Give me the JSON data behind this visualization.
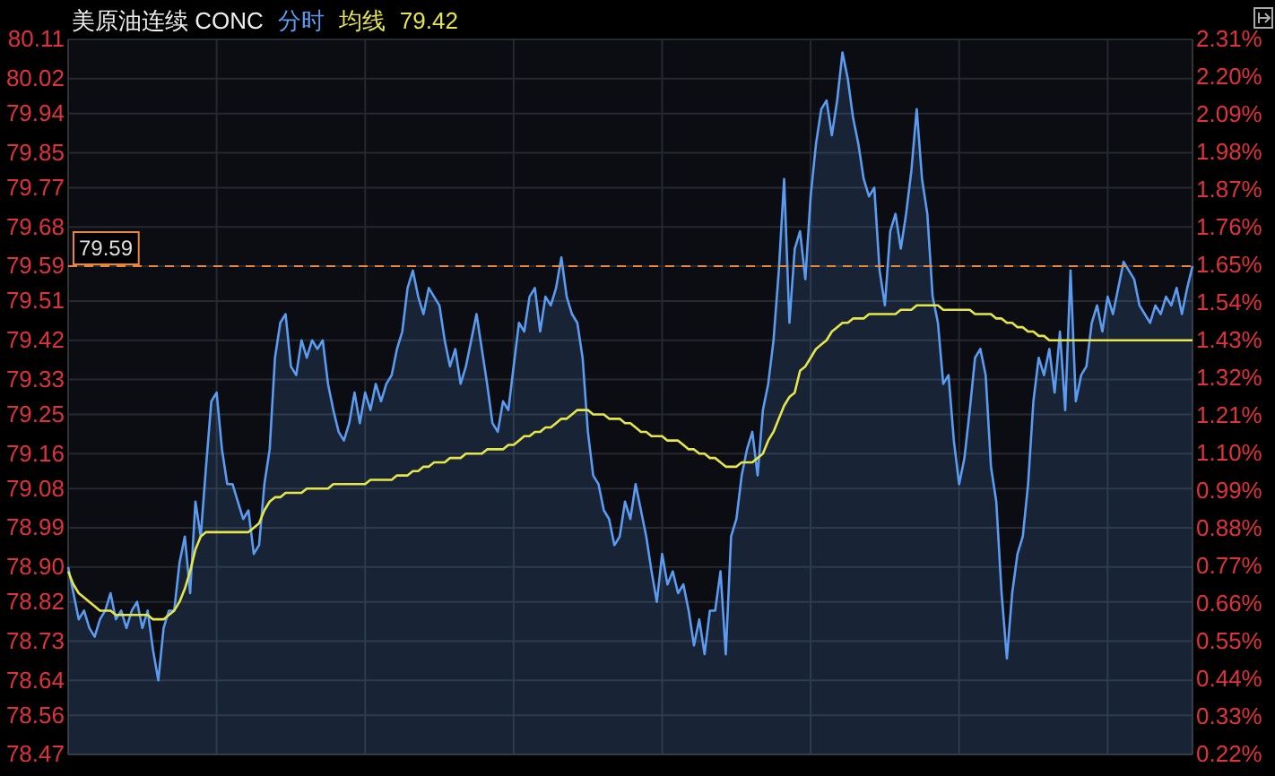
{
  "chart_data": {
    "type": "area",
    "title": "美原油连续 CONC",
    "grid": true,
    "tick_labels": "y",
    "categories": [
      null,
      null,
      null,
      null,
      null,
      null,
      null,
      null,
      null,
      null,
      null,
      null,
      null,
      null,
      null,
      null,
      null,
      null,
      null,
      null,
      null,
      null,
      null,
      null,
      null,
      null,
      null,
      null,
      null,
      null,
      null,
      null,
      null,
      null,
      null,
      null,
      null,
      null,
      null,
      null,
      null,
      null,
      null,
      null,
      null,
      null,
      null,
      null,
      null,
      null,
      null,
      null,
      null,
      null,
      null,
      null,
      null,
      null,
      null,
      null,
      null,
      null,
      null,
      null,
      null,
      null,
      null,
      null,
      null,
      null,
      null,
      null,
      null,
      null,
      null,
      null,
      null,
      null,
      null,
      null,
      null,
      null,
      null,
      null,
      null,
      null,
      null,
      null,
      null,
      null,
      null,
      null,
      null,
      null,
      null,
      null,
      null,
      null,
      null,
      null,
      null,
      null,
      null,
      null,
      null,
      null,
      null,
      null,
      null,
      null,
      null,
      null,
      null,
      null,
      null,
      null,
      null,
      null,
      null,
      null,
      null,
      null,
      null,
      null,
      null,
      null,
      null,
      null,
      null,
      null,
      null,
      null,
      null,
      null,
      null,
      null,
      null,
      null,
      null,
      null,
      null,
      null,
      null,
      null,
      null,
      null,
      null,
      null,
      null,
      null,
      null,
      null,
      null,
      null,
      null,
      null,
      null,
      null,
      null,
      null,
      null,
      null,
      null,
      null,
      null,
      null,
      null,
      null,
      null,
      null,
      null,
      null,
      null,
      null,
      null,
      null,
      null,
      null,
      null,
      null,
      null,
      null,
      null,
      null,
      null,
      null,
      null,
      null,
      null,
      null,
      null,
      null,
      null,
      null,
      null,
      null,
      null,
      null,
      null,
      null,
      null,
      null,
      null,
      null,
      null,
      null,
      null,
      null,
      null,
      null,
      null,
      null,
      null
    ],
    "ylim": [
      78.47,
      80.11
    ],
    "yticks": [
      78.47,
      78.56,
      78.64,
      78.73,
      78.82,
      {
        "value": 78.9,
        "label": "78.90"
      },
      78.99,
      79.08,
      79.16,
      79.25,
      79.33,
      79.42,
      79.51,
      79.59,
      79.68,
      79.77,
      79.85,
      79.94,
      80.02,
      80.11
    ],
    "y2lim": [
      0.22,
      2.31
    ],
    "y2ticks": [
      {
        "value": 0.22,
        "label": "0.22%"
      },
      {
        "value": 0.33,
        "label": "0.33%"
      },
      {
        "value": 0.44,
        "label": "0.44%"
      },
      {
        "value": 0.55,
        "label": "0.55%"
      },
      {
        "value": 0.66,
        "label": "0.66%"
      },
      {
        "value": 0.77,
        "label": "0.77%"
      },
      {
        "value": 0.88,
        "label": "0.88%"
      },
      {
        "value": 0.99,
        "label": "0.99%"
      },
      {
        "value": 1.1,
        "label": "1.10%"
      },
      {
        "value": 1.21,
        "label": "1.21%"
      },
      {
        "value": 1.32,
        "label": "1.32%"
      },
      {
        "value": 1.43,
        "label": "1.43%"
      },
      {
        "value": 1.54,
        "label": "1.54%"
      },
      {
        "value": 1.65,
        "label": "1.65%"
      },
      {
        "value": 1.76,
        "label": "1.76%"
      },
      {
        "value": 1.87,
        "label": "1.87%"
      },
      {
        "value": 1.98,
        "label": "1.98%"
      },
      {
        "value": 2.09,
        "label": "2.09%"
      },
      {
        "value": 2.2,
        "label": "2.20%"
      },
      {
        "value": 2.31,
        "label": "2.31%"
      }
    ],
    "ref_lines": [
      {
        "axis": "y",
        "value": 79.59,
        "label": "79.59",
        "color": "#e8873a",
        "line_style": "dashed"
      }
    ],
    "annotations": [
      "79.42"
    ],
    "series": [
      {
        "name": "分时",
        "color": "#5b9bf0",
        "values": [
          78.9,
          78.84,
          78.78,
          78.8,
          78.76,
          78.74,
          78.78,
          78.8,
          78.84,
          78.78,
          78.8,
          78.76,
          78.8,
          78.82,
          78.76,
          78.8,
          78.71,
          78.64,
          78.76,
          78.8,
          78.8,
          78.91,
          78.97,
          78.84,
          79.05,
          78.97,
          79.13,
          79.28,
          79.3,
          79.17,
          79.09,
          79.09,
          79.05,
          79.01,
          79.03,
          78.93,
          78.95,
          79.09,
          79.17,
          79.38,
          79.46,
          79.48,
          79.36,
          79.34,
          79.42,
          79.38,
          79.42,
          79.4,
          79.42,
          79.32,
          79.26,
          79.21,
          79.19,
          79.23,
          79.3,
          79.23,
          79.3,
          79.26,
          79.32,
          79.28,
          79.32,
          79.34,
          79.4,
          79.44,
          79.54,
          79.58,
          79.52,
          79.48,
          79.54,
          79.52,
          79.5,
          79.42,
          79.36,
          79.4,
          79.32,
          79.36,
          79.42,
          79.48,
          79.4,
          79.32,
          79.23,
          79.21,
          79.28,
          79.26,
          79.36,
          79.46,
          79.44,
          79.52,
          79.54,
          79.44,
          79.52,
          79.5,
          79.54,
          79.61,
          79.52,
          79.48,
          79.46,
          79.38,
          79.21,
          79.11,
          79.09,
          79.03,
          79.01,
          78.95,
          78.97,
          79.05,
          79.01,
          79.09,
          79.03,
          78.97,
          78.89,
          78.82,
          78.93,
          78.86,
          78.89,
          78.84,
          78.86,
          78.8,
          78.72,
          78.78,
          78.7,
          78.8,
          78.8,
          78.89,
          78.7,
          78.97,
          79.01,
          79.11,
          79.17,
          79.21,
          79.11,
          79.26,
          79.32,
          79.42,
          79.58,
          79.79,
          79.46,
          79.63,
          79.67,
          79.56,
          79.75,
          79.87,
          79.95,
          79.97,
          79.89,
          79.97,
          80.08,
          80.02,
          79.93,
          79.87,
          79.79,
          79.75,
          79.77,
          79.58,
          79.5,
          79.67,
          79.71,
          79.63,
          79.71,
          79.81,
          79.95,
          79.79,
          79.71,
          79.52,
          79.46,
          79.32,
          79.34,
          79.19,
          79.09,
          79.15,
          79.26,
          79.38,
          79.4,
          79.34,
          79.13,
          79.05,
          78.84,
          78.69,
          78.84,
          78.93,
          78.97,
          79.09,
          79.28,
          79.38,
          79.34,
          79.4,
          79.3,
          79.44,
          79.26,
          79.58,
          79.28,
          79.34,
          79.36,
          79.46,
          79.5,
          79.44,
          79.52,
          79.48,
          79.54,
          79.6,
          79.58,
          79.56,
          79.5,
          79.48,
          79.46,
          79.5,
          79.48,
          79.52,
          79.5,
          79.54,
          79.48,
          79.54,
          79.59
        ]
      },
      {
        "name": "均线",
        "type": "line",
        "color": "#e6e64a",
        "values": [
          78.89,
          78.86,
          78.84,
          78.83,
          78.82,
          78.81,
          78.8,
          78.8,
          78.8,
          78.79,
          78.79,
          78.79,
          78.79,
          78.79,
          78.79,
          78.79,
          78.78,
          78.78,
          78.78,
          78.79,
          78.8,
          78.82,
          78.85,
          78.89,
          78.94,
          78.97,
          78.98,
          78.98,
          78.98,
          78.98,
          78.98,
          78.98,
          78.98,
          78.98,
          78.98,
          78.99,
          79.0,
          79.03,
          79.05,
          79.06,
          79.06,
          79.07,
          79.07,
          79.07,
          79.07,
          79.08,
          79.08,
          79.08,
          79.08,
          79.08,
          79.09,
          79.09,
          79.09,
          79.09,
          79.09,
          79.09,
          79.09,
          79.1,
          79.1,
          79.1,
          79.1,
          79.1,
          79.11,
          79.11,
          79.11,
          79.12,
          79.12,
          79.13,
          79.13,
          79.14,
          79.14,
          79.14,
          79.15,
          79.15,
          79.15,
          79.16,
          79.16,
          79.16,
          79.16,
          79.17,
          79.17,
          79.17,
          79.17,
          79.18,
          79.18,
          79.19,
          79.2,
          79.2,
          79.21,
          79.21,
          79.22,
          79.22,
          79.23,
          79.24,
          79.24,
          79.25,
          79.26,
          79.26,
          79.26,
          79.25,
          79.25,
          79.25,
          79.24,
          79.24,
          79.24,
          79.23,
          79.23,
          79.22,
          79.21,
          79.21,
          79.2,
          79.2,
          79.2,
          79.19,
          79.19,
          79.19,
          79.18,
          79.17,
          79.17,
          79.16,
          79.16,
          79.15,
          79.15,
          79.14,
          79.13,
          79.13,
          79.13,
          79.14,
          79.14,
          79.14,
          79.15,
          79.16,
          79.19,
          79.21,
          79.24,
          79.27,
          79.29,
          79.3,
          79.35,
          79.36,
          79.38,
          79.4,
          79.41,
          79.42,
          79.44,
          79.45,
          79.46,
          79.46,
          79.47,
          79.47,
          79.47,
          79.48,
          79.48,
          79.48,
          79.48,
          79.48,
          79.48,
          79.49,
          79.49,
          79.49,
          79.5,
          79.5,
          79.5,
          79.5,
          79.5,
          79.49,
          79.49,
          79.49,
          79.49,
          79.49,
          79.49,
          79.48,
          79.48,
          79.48,
          79.48,
          79.47,
          79.47,
          79.46,
          79.46,
          79.45,
          79.45,
          79.44,
          79.44,
          79.43,
          79.43,
          79.42,
          79.42,
          79.42,
          79.42,
          79.42,
          79.42,
          79.42,
          79.42,
          79.42,
          79.42,
          79.42,
          79.42,
          79.42,
          79.42,
          79.42,
          79.42,
          79.42,
          79.42,
          79.42,
          79.42,
          79.42,
          79.42,
          79.42,
          79.42,
          79.42,
          79.42,
          79.42,
          79.42
        ]
      }
    ]
  }
}
